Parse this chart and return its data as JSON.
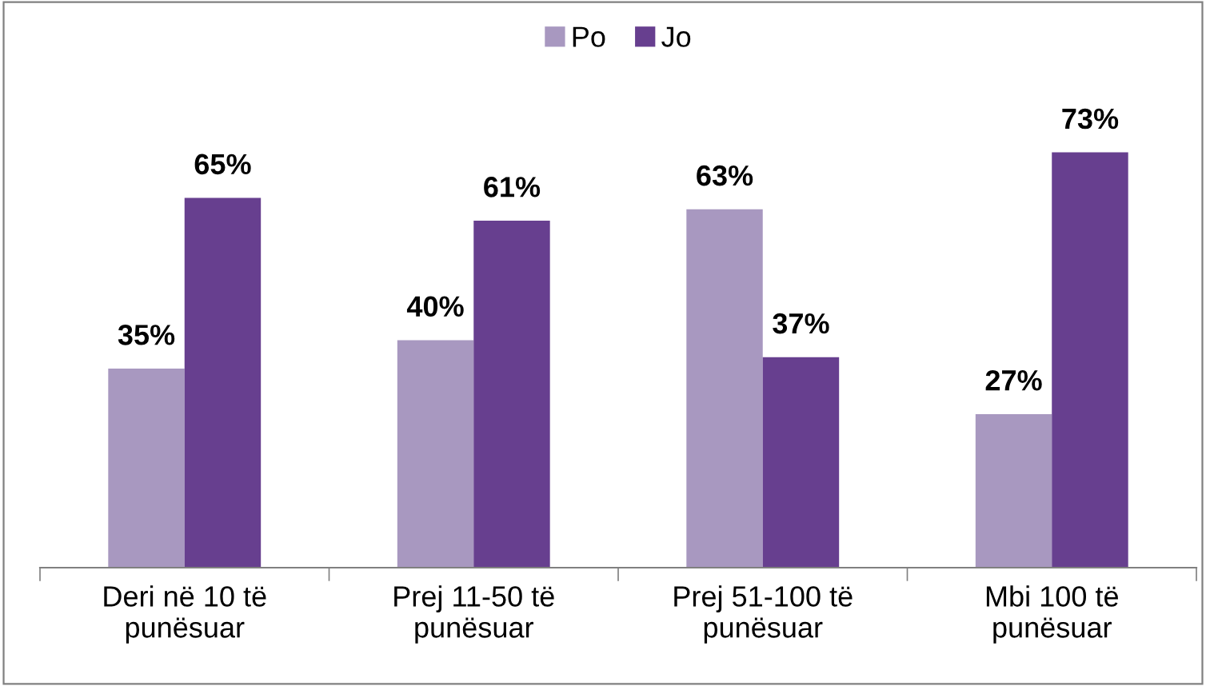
{
  "chart_data": {
    "type": "bar",
    "categories": [
      "Deri në 10 të\npunësuar",
      "Prej 11-50 të\npunësuar",
      "Prej 51-100 të\npunësuar",
      "Mbi 100 të\npunësuar"
    ],
    "series": [
      {
        "name": "Po",
        "color": "#a898c0",
        "values": [
          35,
          40,
          63,
          27
        ],
        "value_labels": [
          "35%",
          "40%",
          "63%",
          "27%"
        ]
      },
      {
        "name": "Jo",
        "color": "#673f8f",
        "values": [
          65,
          61,
          37,
          73
        ],
        "value_labels": [
          "65%",
          "61%",
          "37%",
          "73%"
        ]
      }
    ],
    "legend": "top",
    "grid": false
  }
}
